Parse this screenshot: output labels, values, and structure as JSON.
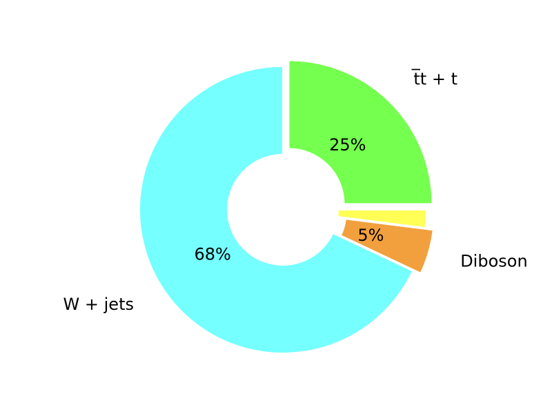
{
  "chart_data": {
    "type": "pie",
    "subtype": "donut",
    "slices": [
      {
        "label": "t̅t + t",
        "value": 25,
        "pct_label": "25%",
        "color": "#75FF4F",
        "explode": true
      },
      {
        "label": "",
        "value": 2,
        "pct_label": "",
        "color": "#FFFF55",
        "explode": false
      },
      {
        "label": "Diboson",
        "value": 5,
        "pct_label": "5%",
        "color": "#F2A03D",
        "explode": true
      },
      {
        "label": "W + jets",
        "value": 68,
        "pct_label": "68%",
        "color": "#75FFFF",
        "explode": false
      }
    ],
    "start_angle_deg": 90,
    "direction": "clockwise",
    "legend": "none"
  }
}
